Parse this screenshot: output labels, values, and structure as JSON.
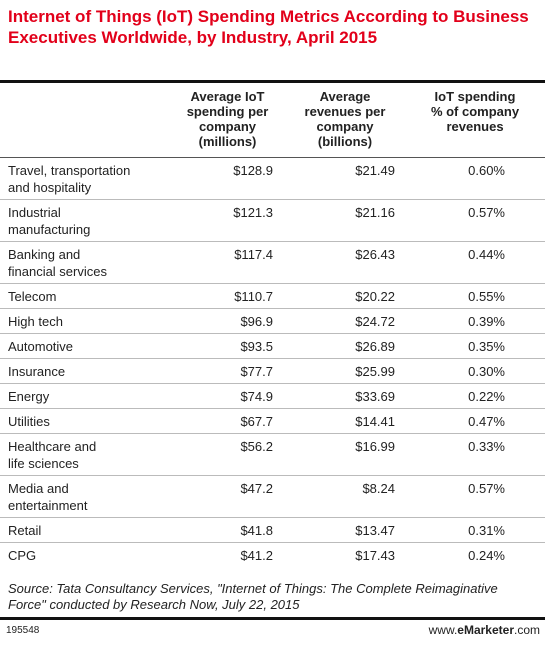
{
  "header": {
    "title": "Internet of Things (IoT) Spending Metrics According to Business Executives Worldwide, by Industry, April 2015"
  },
  "table": {
    "columns": [
      [],
      [
        "Average IoT",
        "spending per",
        "company",
        "(millions)"
      ],
      [
        "Average",
        "revenues per",
        "company",
        "(billions)"
      ],
      [
        "IoT spending",
        "% of company",
        "revenues"
      ]
    ],
    "rows": [
      [
        [
          "Travel, transportation",
          "and hospitality"
        ],
        "$128.9",
        "$21.49",
        "0.60%"
      ],
      [
        [
          "Industrial",
          "manufacturing"
        ],
        "$121.3",
        "$21.16",
        "0.57%"
      ],
      [
        [
          "Banking and",
          "financial services"
        ],
        "$117.4",
        "$26.43",
        "0.44%"
      ],
      [
        [
          "Telecom"
        ],
        "$110.7",
        "$20.22",
        "0.55%"
      ],
      [
        [
          "High tech"
        ],
        "$96.9",
        "$24.72",
        "0.39%"
      ],
      [
        [
          "Automotive"
        ],
        "$93.5",
        "$26.89",
        "0.35%"
      ],
      [
        [
          "Insurance"
        ],
        "$77.7",
        "$25.99",
        "0.30%"
      ],
      [
        [
          "Energy"
        ],
        "$74.9",
        "$33.69",
        "0.22%"
      ],
      [
        [
          "Utilities"
        ],
        "$67.7",
        "$14.41",
        "0.47%"
      ],
      [
        [
          "Healthcare and",
          "life sciences"
        ],
        "$56.2",
        "$16.99",
        "0.33%"
      ],
      [
        [
          "Media and",
          "entertainment"
        ],
        "$47.2",
        "$8.24",
        "0.57%"
      ],
      [
        [
          "Retail"
        ],
        "$41.8",
        "$13.47",
        "0.31%"
      ],
      [
        [
          "CPG"
        ],
        "$41.2",
        "$17.43",
        "0.24%"
      ]
    ]
  },
  "source": "Source: Tata Consultancy Services, \"Internet of Things: The Complete Reimaginative Force\" conducted by Research Now, July 22, 2015",
  "footer": {
    "id": "195548",
    "site_prefix": "www.",
    "site_brand": "eMarketer",
    "site_suffix": ".com"
  }
}
